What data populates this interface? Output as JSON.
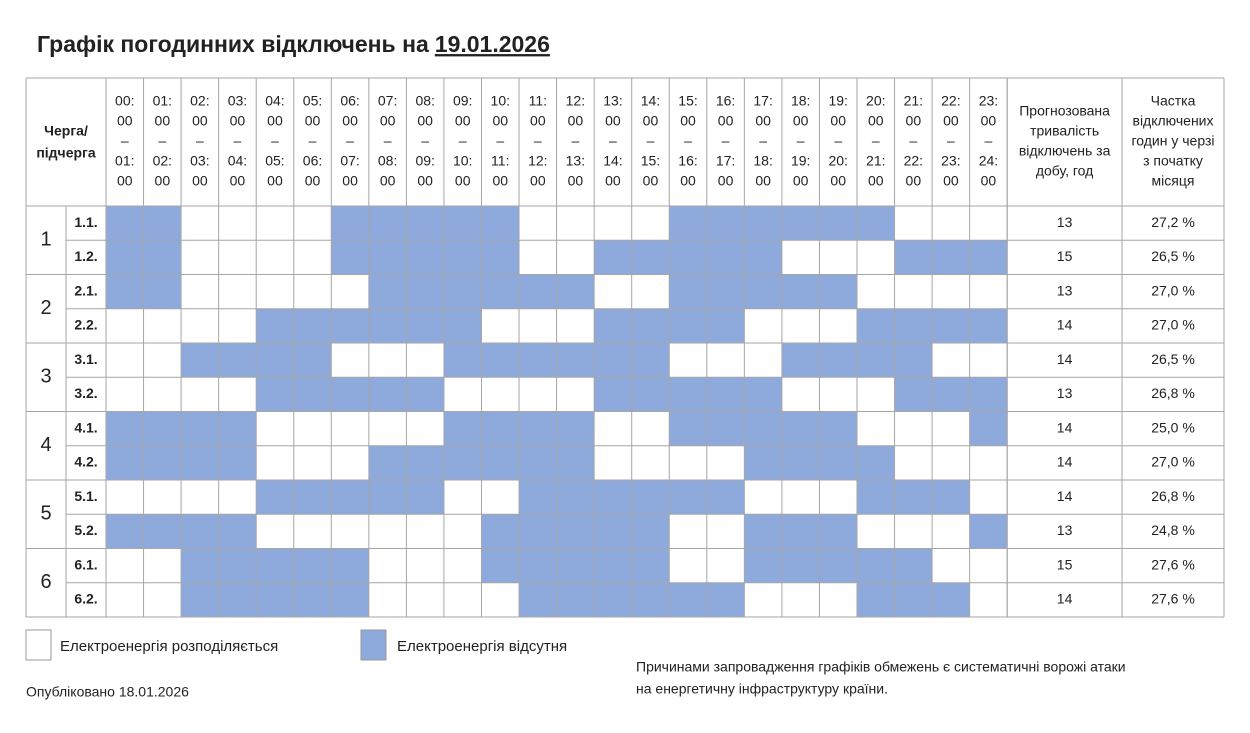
{
  "header": {
    "title": "Графік погодинних відключень на",
    "date": "19.01.2026"
  },
  "table": {
    "corner": [
      "Черга/",
      "підчерга"
    ],
    "hours": [
      [
        "00:",
        "00",
        "–",
        "01:",
        "00"
      ],
      [
        "01:",
        "00",
        "–",
        "02:",
        "00"
      ],
      [
        "02:",
        "00",
        "–",
        "03:",
        "00"
      ],
      [
        "03:",
        "00",
        "–",
        "04:",
        "00"
      ],
      [
        "04:",
        "00",
        "–",
        "05:",
        "00"
      ],
      [
        "05:",
        "00",
        "–",
        "06:",
        "00"
      ],
      [
        "06:",
        "00",
        "–",
        "07:",
        "00"
      ],
      [
        "07:",
        "00",
        "–",
        "08:",
        "00"
      ],
      [
        "08:",
        "00",
        "–",
        "09:",
        "00"
      ],
      [
        "09:",
        "00",
        "–",
        "10:",
        "00"
      ],
      [
        "10:",
        "00",
        "–",
        "11:",
        "00"
      ],
      [
        "11:",
        "00",
        "–",
        "12:",
        "00"
      ],
      [
        "12:",
        "00",
        "–",
        "13:",
        "00"
      ],
      [
        "13:",
        "00",
        "–",
        "14:",
        "00"
      ],
      [
        "14:",
        "00",
        "–",
        "15:",
        "00"
      ],
      [
        "15:",
        "00",
        "–",
        "16:",
        "00"
      ],
      [
        "16:",
        "00",
        "–",
        "17:",
        "00"
      ],
      [
        "17:",
        "00",
        "–",
        "18:",
        "00"
      ],
      [
        "18:",
        "00",
        "–",
        "19:",
        "00"
      ],
      [
        "19:",
        "00",
        "–",
        "20:",
        "00"
      ],
      [
        "20:",
        "00",
        "–",
        "21:",
        "00"
      ],
      [
        "21:",
        "00",
        "–",
        "22:",
        "00"
      ],
      [
        "22:",
        "00",
        "–",
        "23:",
        "00"
      ],
      [
        "23:",
        "00",
        "–",
        "24:",
        "00"
      ]
    ],
    "duration_header": [
      "Прогнозована",
      "тривалість",
      "відключень за",
      "добу, год"
    ],
    "share_header": [
      "Частка",
      "відключених",
      "годин у черзі",
      "з початку",
      "місяця"
    ],
    "queues": [
      "1",
      "2",
      "3",
      "4",
      "5",
      "6"
    ],
    "rows": [
      {
        "sub": "1.1.",
        "off": [
          1,
          1,
          0,
          0,
          0,
          0,
          1,
          1,
          1,
          1,
          1,
          0,
          0,
          0,
          0,
          1,
          1,
          1,
          1,
          1,
          1,
          0,
          0,
          0
        ],
        "hours": 13,
        "share": "27,2 %"
      },
      {
        "sub": "1.2.",
        "off": [
          1,
          1,
          0,
          0,
          0,
          0,
          1,
          1,
          1,
          1,
          1,
          0,
          0,
          1,
          1,
          1,
          1,
          1,
          0,
          0,
          0,
          1,
          1,
          1
        ],
        "hours": 15,
        "share": "26,5 %"
      },
      {
        "sub": "2.1.",
        "off": [
          1,
          1,
          0,
          0,
          0,
          0,
          0,
          1,
          1,
          1,
          1,
          1,
          1,
          0,
          0,
          1,
          1,
          1,
          1,
          1,
          0,
          0,
          0,
          0
        ],
        "hours": 13,
        "share": "27,0 %"
      },
      {
        "sub": "2.2.",
        "off": [
          0,
          0,
          0,
          0,
          1,
          1,
          1,
          1,
          1,
          1,
          0,
          0,
          0,
          1,
          1,
          1,
          1,
          0,
          0,
          0,
          1,
          1,
          1,
          1
        ],
        "hours": 14,
        "share": "27,0 %"
      },
      {
        "sub": "3.1.",
        "off": [
          0,
          0,
          1,
          1,
          1,
          1,
          0,
          0,
          0,
          1,
          1,
          1,
          1,
          1,
          1,
          0,
          0,
          0,
          1,
          1,
          1,
          1,
          0,
          0
        ],
        "hours": 14,
        "share": "26,5 %"
      },
      {
        "sub": "3.2.",
        "off": [
          0,
          0,
          0,
          0,
          1,
          1,
          1,
          1,
          1,
          0,
          0,
          0,
          0,
          1,
          1,
          1,
          1,
          1,
          0,
          0,
          0,
          1,
          1,
          1
        ],
        "hours": 13,
        "share": "26,8 %"
      },
      {
        "sub": "4.1.",
        "off": [
          1,
          1,
          1,
          1,
          0,
          0,
          0,
          0,
          0,
          1,
          1,
          1,
          1,
          0,
          0,
          1,
          1,
          1,
          1,
          1,
          0,
          0,
          0,
          1
        ],
        "hours": 14,
        "share": "25,0 %"
      },
      {
        "sub": "4.2.",
        "off": [
          1,
          1,
          1,
          1,
          0,
          0,
          0,
          1,
          1,
          1,
          1,
          1,
          1,
          0,
          0,
          0,
          0,
          1,
          1,
          1,
          1,
          0,
          0,
          0
        ],
        "hours": 14,
        "share": "27,0 %"
      },
      {
        "sub": "5.1.",
        "off": [
          0,
          0,
          0,
          0,
          1,
          1,
          1,
          1,
          1,
          0,
          0,
          1,
          1,
          1,
          1,
          1,
          1,
          0,
          0,
          0,
          1,
          1,
          1,
          0
        ],
        "hours": 14,
        "share": "26,8 %"
      },
      {
        "sub": "5.2.",
        "off": [
          1,
          1,
          1,
          1,
          0,
          0,
          0,
          0,
          0,
          0,
          1,
          1,
          1,
          1,
          1,
          0,
          0,
          1,
          1,
          1,
          0,
          0,
          0,
          1
        ],
        "hours": 13,
        "share": "24,8 %"
      },
      {
        "sub": "6.1.",
        "off": [
          0,
          0,
          1,
          1,
          1,
          1,
          1,
          0,
          0,
          0,
          1,
          1,
          1,
          1,
          1,
          0,
          0,
          1,
          1,
          1,
          1,
          1,
          0,
          0
        ],
        "hours": 15,
        "share": "27,6 %"
      },
      {
        "sub": "6.2.",
        "off": [
          0,
          0,
          1,
          1,
          1,
          1,
          1,
          0,
          0,
          0,
          0,
          1,
          1,
          1,
          1,
          1,
          1,
          0,
          0,
          0,
          1,
          1,
          1,
          0
        ],
        "hours": 14,
        "share": "27,6 %"
      }
    ]
  },
  "legend": {
    "on": "Електроенергія розподіляється",
    "off": "Електроенергія відсутня"
  },
  "footer": {
    "published": "Опубліковано 18.01.2026",
    "note": [
      "Причинами запровадження графіків обмежень є систематичні ворожі атаки",
      "на енергетичну інфраструктуру країни."
    ]
  }
}
